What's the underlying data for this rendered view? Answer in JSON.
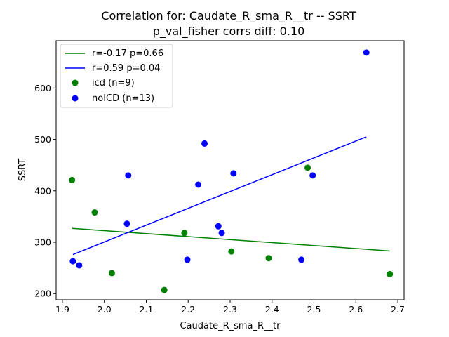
{
  "chart_data": {
    "type": "scatter",
    "title": "Correlation for: Caudate_R_sma_R__tr -- SSRT",
    "subtitle": "p_val_fisher corrs diff: 0.10",
    "xlabel": "Caudate_R_sma_R__tr",
    "ylabel": "SSRT",
    "xlim": [
      1.885,
      2.715
    ],
    "ylim": [
      188,
      692
    ],
    "xticks": [
      1.9,
      2.0,
      2.1,
      2.2,
      2.3,
      2.4,
      2.5,
      2.6,
      2.7
    ],
    "xtick_labels": [
      "1.9",
      "2.0",
      "2.1",
      "2.2",
      "2.3",
      "2.4",
      "2.5",
      "2.6",
      "2.7"
    ],
    "yticks": [
      200,
      300,
      400,
      500,
      600
    ],
    "ytick_labels": [
      "200",
      "300",
      "400",
      "500",
      "600"
    ],
    "grid": false,
    "legend_position": "upper-left",
    "scatter_series": [
      {
        "name": "icd (n=9)",
        "color": "#008000",
        "x": [
          1.923,
          1.977,
          2.018,
          2.143,
          2.191,
          2.303,
          2.392,
          2.485,
          2.681
        ],
        "y": [
          421,
          358,
          240,
          207,
          318,
          282,
          269,
          445,
          238
        ]
      },
      {
        "name": "noICD (n=13)",
        "color": "#0000ff",
        "x": [
          1.925,
          1.94,
          2.054,
          2.057,
          2.198,
          2.224,
          2.239,
          2.272,
          2.28,
          2.308,
          2.47,
          2.497,
          2.625
        ],
        "y": [
          263,
          255,
          336,
          430,
          266,
          412,
          492,
          331,
          318,
          434,
          266,
          430,
          669
        ]
      }
    ],
    "fit_lines": [
      {
        "name": "r=-0.17 p=0.66",
        "color": "#008000",
        "x": [
          1.923,
          2.681
        ],
        "y": [
          327,
          283
        ]
      },
      {
        "name": "r=0.59 p=0.04",
        "color": "#0000ff",
        "x": [
          1.925,
          2.625
        ],
        "y": [
          276,
          505
        ]
      }
    ]
  }
}
